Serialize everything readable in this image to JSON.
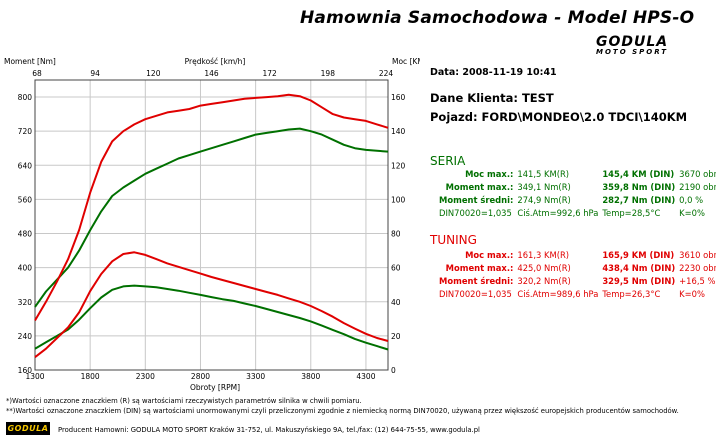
{
  "header": {
    "title": "Hamownia Samochodowa   -   Model HPS-O",
    "logo_main": "GODULA",
    "logo_sub": "MOTO SPORT"
  },
  "info": {
    "date": "Data: 2008-11-19  10:41",
    "client": "Dane Klienta: TEST",
    "vehicle": "Pojazd: FORD\\MONDEO\\2.0 TDCI\\140KM"
  },
  "seria": {
    "title": "SERIA",
    "rows": [
      [
        "Moc max.:",
        "141,5 KM(R)",
        "145,4 KM (DIN)",
        "3670 obr"
      ],
      [
        "Moment max.:",
        "349,1 Nm(R)",
        "359,8 Nm (DIN)",
        "2190 obr"
      ],
      [
        "Moment średni:",
        "274,9 Nm(R)",
        "282,7 Nm (DIN)",
        "0,0 %"
      ],
      [
        "DIN70020=1,035",
        "Ciś.Atm=992,6 hPa",
        "Temp=28,5°C",
        "K=0%"
      ]
    ]
  },
  "tuning": {
    "title": "TUNING",
    "rows": [
      [
        "Moc max.:",
        "161,3 KM(R)",
        "165,9 KM (DIN)",
        "3610 obr"
      ],
      [
        "Moment max.:",
        "425,0 Nm(R)",
        "438,4 Nm (DIN)",
        "2230 obr"
      ],
      [
        "Moment średni:",
        "320,2 Nm(R)",
        "329,5 Nm (DIN)",
        "+16,5 %"
      ],
      [
        "DIN70020=1,035",
        "Ciś.Atm=989,6 hPa",
        "Temp=26,3°C",
        "K=0%"
      ]
    ]
  },
  "footer": {
    "note1": "*)Wartości oznaczone znaczkiem (R) są wartościami rzeczywistych parametrów silnika w chwili pomiaru.",
    "note2": "**)Wartości oznaczone znaczkiem (DIN) są wartościami unormowanymi czyli przeliczonymi zgodnie z niemiecką normą DIN70020, używaną przez większość europejskich producentów samochodów.",
    "producer": "Producent Hamowni: GODULA MOTO SPORT Kraków 31-752, ul. Makuszyńskiego 9A, tel./fax: (12) 644-75-55, www.godula.pl",
    "logo": "GODULA"
  },
  "colors": {
    "seria": "#007000",
    "tuning": "#e00000"
  },
  "chart_data": {
    "type": "line",
    "xlabel": "Obroty [RPM]",
    "ylabel_left": "Moment [Nm]",
    "ylabel_right": "Moc [KM]",
    "top_axis_label": "Prędkość [km/h]",
    "xlim": [
      1300,
      4500
    ],
    "ylim_left": [
      160,
      840
    ],
    "ylim_right": [
      0,
      170
    ],
    "x_ticks": [
      1300,
      1800,
      2300,
      2800,
      3300,
      3800,
      4300
    ],
    "y_left_ticks": [
      160,
      240,
      320,
      400,
      480,
      560,
      640,
      720,
      800
    ],
    "y_right_ticks": [
      0,
      20,
      40,
      60,
      80,
      100,
      120,
      140,
      160
    ],
    "top_ticks": [
      68,
      94,
      120,
      146,
      172,
      198,
      224
    ],
    "grid": true,
    "series": [
      {
        "name": "SERIA",
        "axis": "left",
        "color": "#007000",
        "x": [
          1300,
          1400,
          1500,
          1600,
          1700,
          1800,
          1900,
          2000,
          2100,
          2200,
          2300,
          2400,
          2500,
          2600,
          2700,
          2800,
          2900,
          3000,
          3100,
          3200,
          3300,
          3400,
          3500,
          3600,
          3700,
          3800,
          3900,
          4000,
          4100,
          4200,
          4300,
          4400,
          4500
        ],
        "y": [
          210,
          225,
          240,
          255,
          278,
          305,
          330,
          348,
          356,
          358,
          356,
          354,
          350,
          346,
          341,
          336,
          331,
          326,
          322,
          316,
          310,
          303,
          296,
          289,
          282,
          274,
          264,
          254,
          244,
          233,
          224,
          216,
          208
        ]
      },
      {
        "name": "TUNING",
        "axis": "left",
        "color": "#e00000",
        "x": [
          1300,
          1400,
          1500,
          1600,
          1700,
          1800,
          1900,
          2000,
          2100,
          2200,
          2300,
          2400,
          2500,
          2600,
          2700,
          2800,
          2900,
          3000,
          3100,
          3200,
          3300,
          3400,
          3500,
          3600,
          3700,
          3800,
          3900,
          4000,
          4100,
          4200,
          4300,
          4400,
          4500
        ],
        "y": [
          190,
          210,
          235,
          260,
          295,
          345,
          385,
          415,
          432,
          436,
          430,
          420,
          410,
          402,
          394,
          386,
          378,
          371,
          364,
          357,
          350,
          343,
          336,
          328,
          320,
          310,
          298,
          285,
          270,
          257,
          245,
          235,
          228
        ]
      },
      {
        "name": "SERIA",
        "axis": "right",
        "color": "#007000",
        "x": [
          1300,
          1400,
          1500,
          1600,
          1700,
          1800,
          1900,
          2000,
          2100,
          2200,
          2300,
          2400,
          2500,
          2600,
          2700,
          2800,
          2900,
          3000,
          3100,
          3200,
          3300,
          3400,
          3500,
          3600,
          3700,
          3800,
          3900,
          4000,
          4100,
          4200,
          4300,
          4400,
          4500
        ],
        "y": [
          37,
          46,
          53,
          60,
          70,
          82,
          93,
          102,
          107,
          111,
          115,
          118,
          121,
          124,
          126,
          128,
          130,
          132,
          134,
          136,
          138,
          139,
          140,
          141,
          141.5,
          140,
          138,
          135,
          132,
          130,
          129,
          128.5,
          128
        ]
      },
      {
        "name": "TUNING",
        "axis": "right",
        "color": "#e00000",
        "x": [
          1300,
          1400,
          1500,
          1600,
          1700,
          1800,
          1900,
          2000,
          2100,
          2200,
          2300,
          2400,
          2500,
          2600,
          2700,
          2800,
          2900,
          3000,
          3100,
          3200,
          3300,
          3400,
          3500,
          3600,
          3700,
          3800,
          3900,
          4000,
          4100,
          4200,
          4300,
          4400,
          4500
        ],
        "y": [
          29,
          40,
          52,
          65,
          82,
          104,
          122,
          134,
          140,
          144,
          147,
          149,
          151,
          152,
          153,
          155,
          156,
          157,
          158,
          159,
          159.5,
          160,
          160.5,
          161.3,
          160.5,
          158,
          154,
          150,
          148,
          147,
          146,
          144,
          142
        ]
      }
    ]
  }
}
